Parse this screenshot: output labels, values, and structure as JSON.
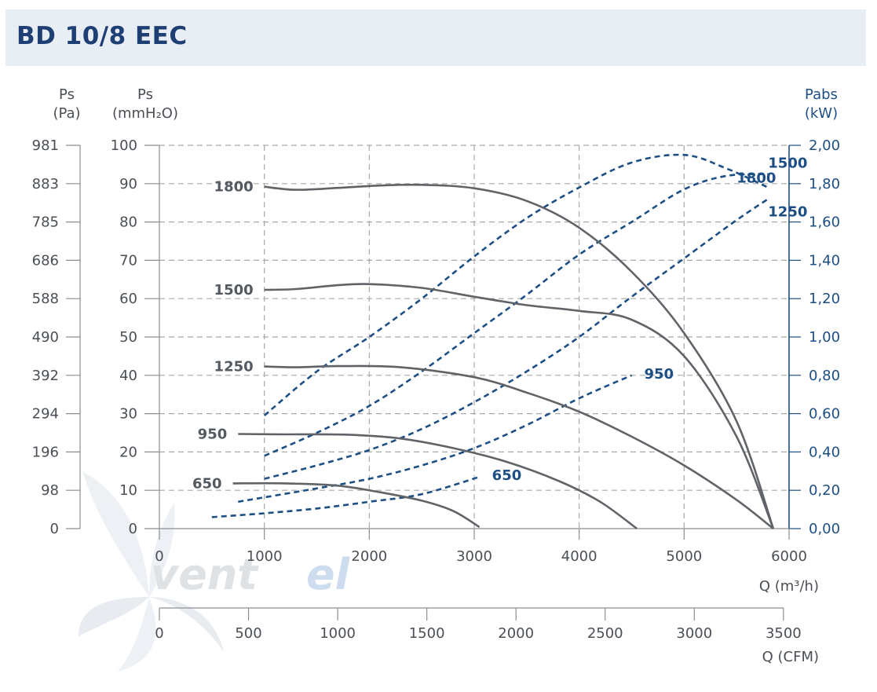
{
  "header": {
    "title": "BD 10/8 EEC"
  },
  "logo": {
    "text_a": "vent",
    "text_b": "el"
  },
  "chart_data": {
    "type": "line",
    "x_unit_label": "Q (m³/h)",
    "x_cfm_label": "Q (CFM)",
    "x_ticks": [
      0,
      1000,
      2000,
      3000,
      4000,
      5000,
      6000
    ],
    "x_cfm_ticks": [
      0,
      500,
      1000,
      1500,
      2000,
      2500,
      3000,
      3500
    ],
    "xlim": [
      0,
      6000
    ],
    "y_left_mm": {
      "title": "Ps",
      "unit": "(mmH₂O)",
      "ticks": [
        0,
        10,
        20,
        30,
        40,
        50,
        60,
        70,
        80,
        90,
        100
      ],
      "ylim": [
        0,
        100
      ]
    },
    "y_left_pa": {
      "title": "Ps",
      "unit": "(Pa)",
      "ticks": [
        "0",
        "98",
        "196",
        "294",
        "392",
        "490",
        "588",
        "686",
        "785",
        "883",
        "981"
      ]
    },
    "y_right": {
      "title": "Pabs",
      "unit": "(kW)",
      "ticks": [
        "0,00",
        "0,20",
        "0,40",
        "0,60",
        "0,80",
        "1,00",
        "1,20",
        "1,40",
        "1,60",
        "1,80",
        "2,00"
      ],
      "ylim": [
        0,
        2.0
      ]
    },
    "grid": true,
    "pressure_series": [
      {
        "name": "1800",
        "points": [
          [
            1000,
            89.2
          ],
          [
            1300,
            88.4
          ],
          [
            1700,
            88.9
          ],
          [
            2100,
            89.5
          ],
          [
            2500,
            89.7
          ],
          [
            3000,
            88.8
          ],
          [
            3500,
            85.5
          ],
          [
            4000,
            78.5
          ],
          [
            4500,
            67
          ],
          [
            5000,
            51
          ],
          [
            5500,
            28
          ],
          [
            5850,
            0
          ]
        ]
      },
      {
        "name": "1500",
        "points": [
          [
            1000,
            62.3
          ],
          [
            1300,
            62.5
          ],
          [
            1700,
            63.5
          ],
          [
            2000,
            63.8
          ],
          [
            2500,
            62.8
          ],
          [
            3000,
            60.5
          ],
          [
            3500,
            58.3
          ],
          [
            4000,
            56.8
          ],
          [
            4500,
            54.5
          ],
          [
            5000,
            45
          ],
          [
            5500,
            24
          ],
          [
            5850,
            0
          ]
        ]
      },
      {
        "name": "1250",
        "points": [
          [
            1000,
            42.3
          ],
          [
            1300,
            42.1
          ],
          [
            1700,
            42.4
          ],
          [
            2300,
            42.1
          ],
          [
            3000,
            39.5
          ],
          [
            3500,
            35.5
          ],
          [
            4000,
            30.5
          ],
          [
            4500,
            24
          ],
          [
            5000,
            16.5
          ],
          [
            5500,
            7.5
          ],
          [
            5850,
            0
          ]
        ]
      },
      {
        "name": "950",
        "points": [
          [
            750,
            24.7
          ],
          [
            1200,
            24.6
          ],
          [
            1800,
            24.5
          ],
          [
            2300,
            23.5
          ],
          [
            2800,
            21
          ],
          [
            3300,
            17.5
          ],
          [
            3800,
            12.5
          ],
          [
            4200,
            7
          ],
          [
            4550,
            0
          ]
        ]
      },
      {
        "name": "650",
        "points": [
          [
            700,
            11.8
          ],
          [
            1200,
            11.8
          ],
          [
            1700,
            11.2
          ],
          [
            2100,
            9.5
          ],
          [
            2500,
            7.3
          ],
          [
            2800,
            4.6
          ],
          [
            3050,
            0.4
          ]
        ]
      }
    ],
    "power_series": [
      {
        "name": "1800",
        "points": [
          [
            1000,
            0.59
          ],
          [
            1500,
            0.82
          ],
          [
            2000,
            1.0
          ],
          [
            2500,
            1.2
          ],
          [
            3000,
            1.42
          ],
          [
            3500,
            1.62
          ],
          [
            4000,
            1.78
          ],
          [
            4500,
            1.91
          ],
          [
            5000,
            1.95
          ],
          [
            5400,
            1.88
          ],
          [
            5800,
            1.78
          ]
        ]
      },
      {
        "name": "1500",
        "points": [
          [
            1000,
            0.38
          ],
          [
            1500,
            0.5
          ],
          [
            2000,
            0.64
          ],
          [
            2500,
            0.82
          ],
          [
            3000,
            1.02
          ],
          [
            3500,
            1.22
          ],
          [
            4000,
            1.43
          ],
          [
            4500,
            1.6
          ],
          [
            5000,
            1.77
          ],
          [
            5400,
            1.84
          ],
          [
            5800,
            1.85
          ]
        ]
      },
      {
        "name": "1250",
        "points": [
          [
            1000,
            0.26
          ],
          [
            1500,
            0.33
          ],
          [
            2000,
            0.41
          ],
          [
            2500,
            0.52
          ],
          [
            3000,
            0.66
          ],
          [
            3500,
            0.82
          ],
          [
            4000,
            1.0
          ],
          [
            4500,
            1.21
          ],
          [
            5000,
            1.41
          ],
          [
            5500,
            1.61
          ],
          [
            5800,
            1.72
          ]
        ]
      },
      {
        "name": "950",
        "points": [
          [
            750,
            0.14
          ],
          [
            1500,
            0.21
          ],
          [
            2000,
            0.26
          ],
          [
            2500,
            0.33
          ],
          [
            3000,
            0.42
          ],
          [
            3500,
            0.54
          ],
          [
            4000,
            0.68
          ],
          [
            4500,
            0.8
          ]
        ]
      },
      {
        "name": "650",
        "points": [
          [
            500,
            0.06
          ],
          [
            1000,
            0.08
          ],
          [
            1500,
            0.105
          ],
          [
            2000,
            0.14
          ],
          [
            2500,
            0.18
          ],
          [
            3050,
            0.27
          ]
        ]
      }
    ],
    "pressure_labels": [
      "1800",
      "1500",
      "1250",
      "950",
      "650"
    ],
    "power_labels": [
      "1800",
      "1500",
      "1250",
      "950",
      "650"
    ],
    "colors": {
      "pressure": "#606468",
      "power": "#1d4f85",
      "grid": "#a9a9a9",
      "title": "#1d3f74",
      "header_bg": "#e9eef4"
    }
  }
}
